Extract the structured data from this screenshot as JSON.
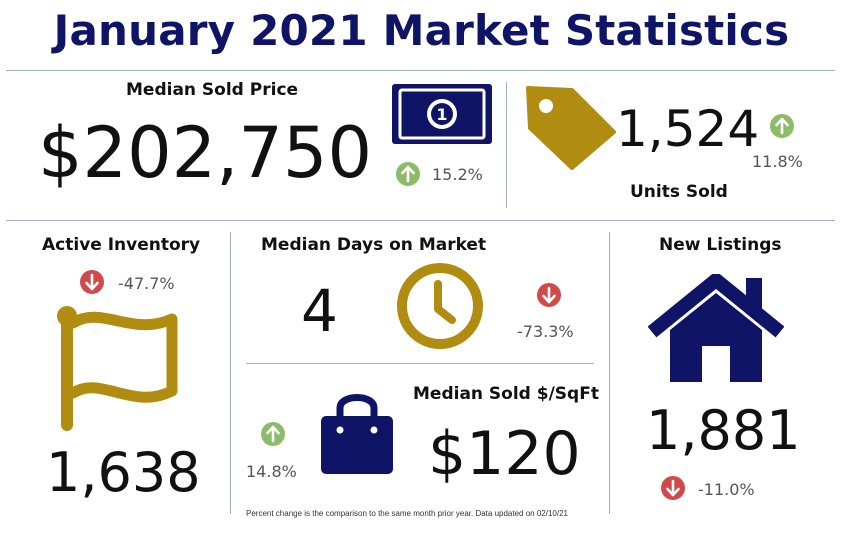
{
  "title": "January 2021 Market Statistics",
  "colors": {
    "navy": "#0f1466",
    "gold": "#b08d10",
    "up": "#8dbb69",
    "down": "#cf4b4b"
  },
  "median_sold_price": {
    "label": "Median Sold Price",
    "value": "$202,750",
    "change": "15.2%",
    "direction": "up",
    "icon": "dollar-bill-icon"
  },
  "units_sold": {
    "label": "Units Sold",
    "value": "1,524",
    "change": "11.8%",
    "direction": "up",
    "icon": "price-tag-icon"
  },
  "active_inventory": {
    "label": "Active Inventory",
    "value": "1,638",
    "change": "-47.7%",
    "direction": "down",
    "icon": "flag-icon"
  },
  "median_days_on_market": {
    "label": "Median Days on Market",
    "value": "4",
    "change": "-73.3%",
    "direction": "down",
    "icon": "clock-icon"
  },
  "median_sold_sqft": {
    "label": "Median Sold $/SqFt",
    "value": "$120",
    "change": "14.8%",
    "direction": "up",
    "icon": "shopping-bag-icon"
  },
  "new_listings": {
    "label": "New Listings",
    "value": "1,881",
    "change": "-11.0%",
    "direction": "down",
    "icon": "house-icon"
  },
  "footnote": "Percent change is the comparison to the same month prior year.  Data updated on 02/10/21"
}
